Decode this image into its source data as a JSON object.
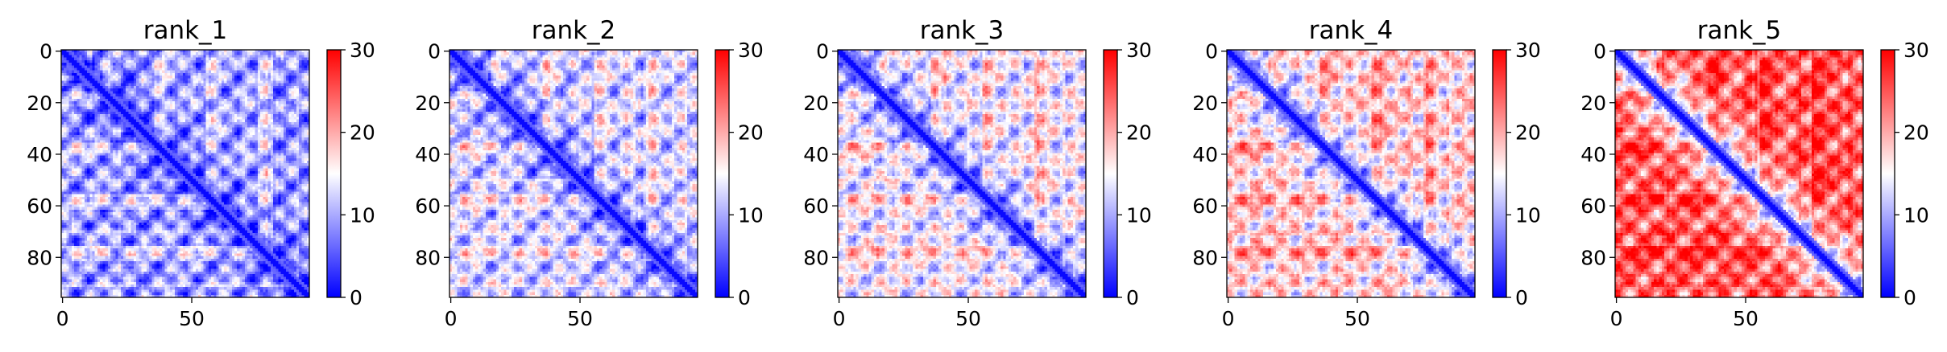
{
  "chart_data": {
    "type": "heatmap",
    "n": 96,
    "colormap": {
      "name": "bwr",
      "colors": [
        "#0000ff",
        "#ffffff",
        "#ff0000"
      ]
    },
    "vmin": 0,
    "vmax": 30,
    "colorbar_ticks": [
      0,
      10,
      20,
      30
    ],
    "x_ticks": [
      0,
      50
    ],
    "y_ticks": [
      0,
      20,
      40,
      60,
      80
    ],
    "panels": [
      {
        "title": "rank_1",
        "background_level": 9
      },
      {
        "title": "rank_2",
        "background_level": 12
      },
      {
        "title": "rank_3",
        "background_level": 14
      },
      {
        "title": "rank_4",
        "background_level": 17
      },
      {
        "title": "rank_5",
        "background_level": 24
      }
    ]
  }
}
